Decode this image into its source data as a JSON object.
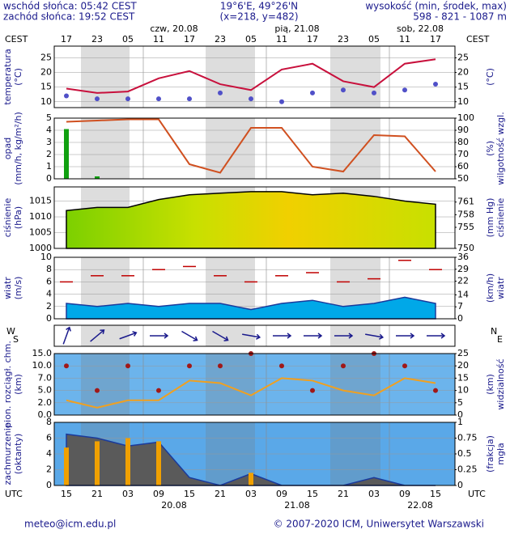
{
  "header": {
    "sunrise": "wschód słońca: 05:42 CEST",
    "sunset": "zachód słońca: 19:52 CEST",
    "coordinates": "19°6'E, 49°26'N",
    "grid_point": "(x=218,  y=482)",
    "elevation_label": "wysokość (min, środek, max)",
    "elevation": "598 - 821 - 1087 m"
  },
  "time_axis": {
    "cest_label": "CEST",
    "utc_label": "UTC",
    "cest_dates": [
      "czw, 20.08",
      "pią, 21.08",
      "sob, 22.08"
    ],
    "utc_dates": [
      "20.08",
      "21.08",
      "22.08"
    ],
    "cest_ticks": [
      "17",
      "23",
      "05",
      "11",
      "17",
      "23",
      "05",
      "11",
      "17",
      "23",
      "05",
      "11",
      "17"
    ]
  },
  "footer": {
    "contact": "meteo@icm.edu.pl",
    "copyright": "© 2007-2020 ICM, Uniwersytet Warszawski"
  },
  "chart_data": [
    {
      "type": "line",
      "categories": [
        "15",
        "21",
        "03",
        "09",
        "15",
        "21",
        "03",
        "09",
        "15",
        "21",
        "03",
        "09",
        "15"
      ],
      "ylabel": [
        "temperatura",
        "(°C)"
      ],
      "y2label": [
        "(°C)"
      ],
      "ylim": [
        8,
        29
      ],
      "yticks": [
        10,
        15,
        20,
        25
      ],
      "y2lim": [
        8,
        29
      ],
      "y2ticks": [
        10,
        15,
        20,
        25
      ],
      "series": [
        {
          "type": "line",
          "color": "#c8103c",
          "values": [
            14.5,
            13,
            13.5,
            18,
            20.5,
            16,
            14,
            21,
            23,
            17,
            15,
            23,
            24.5
          ]
        },
        {
          "type": "dots",
          "color": "#5050c8",
          "values": [
            12,
            11,
            11,
            11,
            11,
            13,
            11,
            10,
            13,
            14,
            13,
            14,
            16
          ]
        }
      ]
    },
    {
      "type": "line",
      "categories": [
        "15",
        "21",
        "03",
        "09",
        "15",
        "21",
        "03",
        "09",
        "15",
        "21",
        "03",
        "09",
        "15"
      ],
      "ylabel": [
        "opad",
        "(mm/h, kg/m²/h)"
      ],
      "y2label": [
        "(%)",
        "wilgotność wzgl."
      ],
      "ylim": [
        0,
        5
      ],
      "yticks": [
        0,
        1,
        2,
        3,
        4,
        5
      ],
      "y2lim": [
        50,
        100
      ],
      "y2ticks": [
        50,
        60,
        70,
        80,
        90,
        100
      ],
      "series": [
        {
          "type": "bar",
          "color": "#10a010",
          "values": [
            4.1,
            0.2,
            0,
            0,
            0,
            0,
            0,
            0,
            0,
            0,
            0,
            0,
            0
          ]
        },
        {
          "type": "line",
          "axis": "y2",
          "color": "#d05020",
          "values": [
            97,
            98,
            99,
            99,
            62,
            55,
            92,
            92,
            60,
            56,
            86,
            85,
            56
          ]
        }
      ]
    },
    {
      "type": "line",
      "categories": [
        "15",
        "21",
        "03",
        "09",
        "15",
        "21",
        "03",
        "09",
        "15",
        "21",
        "03",
        "09",
        "15"
      ],
      "ylabel": [
        "ciśnienie",
        "(hPa)"
      ],
      "y2label": [
        "(mm Hg)",
        "ciśnienie"
      ],
      "ylim": [
        1000,
        1019.5
      ],
      "yticks": [
        1000,
        1005,
        1010,
        1015
      ],
      "y2lim": [
        750,
        764.6
      ],
      "y2ticks": [
        750,
        755,
        758,
        761
      ],
      "series": [
        {
          "type": "area",
          "color": "#000000",
          "values": [
            1012,
            1013,
            1013,
            1015.5,
            1017,
            1017.5,
            1018,
            1018,
            1017,
            1017.5,
            1016.5,
            1015,
            1014
          ]
        }
      ]
    },
    {
      "type": "line",
      "categories": [
        "15",
        "21",
        "03",
        "09",
        "15",
        "21",
        "03",
        "09",
        "15",
        "21",
        "03",
        "09",
        "15"
      ],
      "ylabel": [
        "wiatr",
        "(m/s)"
      ],
      "y2label": [
        "(km/h)",
        "wiatr"
      ],
      "ylim": [
        0,
        10
      ],
      "yticks": [
        0,
        2,
        4,
        6,
        8,
        10
      ],
      "y2lim": [
        0,
        36
      ],
      "y2ticks": [
        0,
        7,
        14,
        22,
        29,
        36
      ],
      "series": [
        {
          "type": "area",
          "color": "#00a8e8",
          "values": [
            2.5,
            2,
            2.5,
            2,
            2.5,
            2.5,
            1.5,
            2.5,
            3,
            2,
            2.5,
            3.5,
            2.5
          ]
        },
        {
          "type": "dash",
          "color": "#c00000",
          "values": [
            6,
            7,
            7,
            8,
            8.5,
            7,
            6,
            7,
            7.5,
            6,
            6.5,
            9.5,
            8
          ]
        }
      ]
    },
    {
      "type": "vector",
      "categories": [
        "15",
        "21",
        "03",
        "09",
        "15",
        "21",
        "03",
        "09",
        "15",
        "21",
        "03",
        "09",
        "15"
      ],
      "ylabel": [
        "W",
        "S"
      ],
      "y2label": [
        "N",
        "E"
      ],
      "series": [
        {
          "type": "vector",
          "color": "#1a1a8c",
          "values": [
            200,
            230,
            250,
            270,
            300,
            300,
            280,
            270,
            270,
            270,
            280,
            270,
            270
          ]
        }
      ]
    },
    {
      "type": "line",
      "categories": [
        "15",
        "21",
        "03",
        "09",
        "15",
        "21",
        "03",
        "09",
        "15",
        "21",
        "03",
        "09",
        "15"
      ],
      "ylabel": [
        "pion. rozciągł. chm.",
        "(km)"
      ],
      "y2label": [
        "(km)",
        "widzialność"
      ],
      "yscale": "even-ticks",
      "ylim": [
        0,
        15
      ],
      "yticks": [
        {
          "value": 0,
          "label": "0.0"
        },
        {
          "value": 2,
          "label": "2.0"
        },
        {
          "value": 5,
          "label": "5.0"
        },
        {
          "value": 7,
          "label": "7.0"
        },
        {
          "value": 10,
          "label": "10.0"
        },
        {
          "value": 15,
          "label": "15.0"
        }
      ],
      "y2lim": [
        0,
        25
      ],
      "y2ticks": [
        0,
        5,
        10,
        15,
        20,
        25
      ],
      "series": [
        {
          "type": "dots",
          "color": "#a01818",
          "values": [
            10,
            5,
            10,
            5,
            10,
            10,
            15,
            10,
            5,
            10,
            15,
            10,
            5
          ]
        },
        {
          "type": "line",
          "axis": "y2",
          "color": "#f0a020",
          "values": [
            6,
            3,
            6,
            6,
            14,
            13,
            8,
            15,
            14,
            10,
            8,
            15,
            13
          ]
        }
      ]
    },
    {
      "type": "line",
      "categories": [
        "15",
        "21",
        "03",
        "09",
        "15",
        "21",
        "03",
        "09",
        "15",
        "21",
        "03",
        "09",
        "15"
      ],
      "ylabel": [
        "zachmurzenie",
        "(oktanty)"
      ],
      "y2label": [
        "(frakcja)",
        "mgła"
      ],
      "ylim": [
        0,
        8
      ],
      "yticks": [
        0,
        2,
        4,
        6,
        8
      ],
      "y2lim": [
        0,
        1
      ],
      "y2ticks": [
        0,
        0.25,
        0.5,
        0.75,
        1
      ],
      "series": [
        {
          "type": "area",
          "color": "#5a5a5a",
          "values": [
            6.5,
            6,
            5,
            5.5,
            1,
            0,
            1.5,
            0,
            0,
            0,
            1,
            0,
            0
          ]
        },
        {
          "type": "bar",
          "axis": "y2",
          "color": "#f0a000",
          "values": [
            0.6,
            0.7,
            0.75,
            0.7,
            0,
            0,
            0.2,
            0,
            0,
            0,
            0,
            0,
            0
          ]
        }
      ]
    }
  ]
}
